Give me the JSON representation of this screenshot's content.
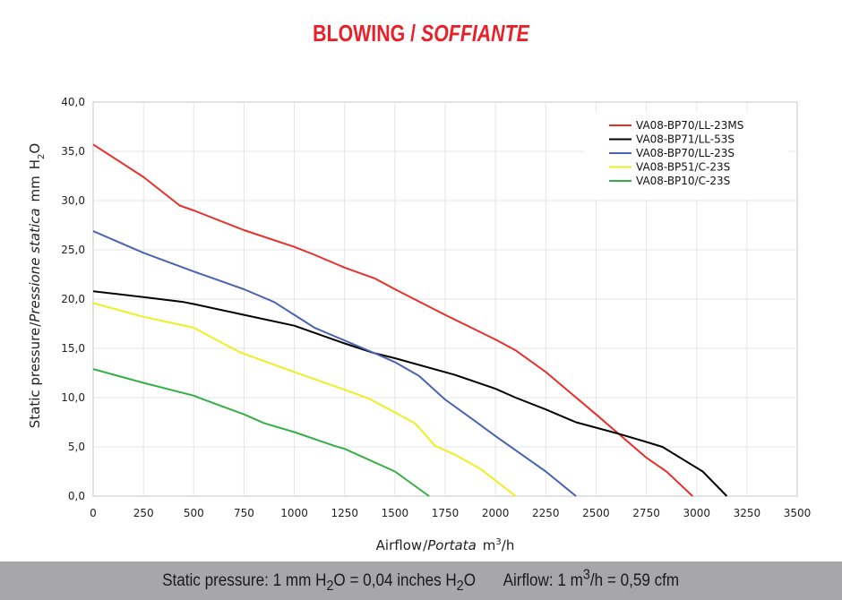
{
  "title": {
    "main": "BLOWING",
    "separator": "/",
    "italic": "SOFFIANTE",
    "color": "#e8202a"
  },
  "footer": {
    "pressure_prefix": "Static pressure: 1 mm H",
    "pressure_sub": "2",
    "pressure_mid": "O = 0,04 inches H",
    "pressure_sub2": "2",
    "pressure_suffix": "O",
    "airflow_prefix": "Airflow: 1 m",
    "airflow_sup": "3",
    "airflow_suffix": "/h = 0,59 cfm"
  },
  "chart_data": {
    "type": "line",
    "title": "BLOWING / SOFFIANTE",
    "xlabel": {
      "main": "Airflow",
      "separator": "/",
      "italic": "Portata",
      "unit": "m",
      "unit_sup": "3",
      "unit_suffix": "/h"
    },
    "ylabel": {
      "main": "Static pressure",
      "separator": "/",
      "italic": "Pressione statica",
      "unit": "mm",
      "unit_h": "H",
      "unit_sub": "2",
      "unit_o": "O"
    },
    "xlim": [
      0,
      3500
    ],
    "ylim": [
      0,
      40
    ],
    "x_ticks": [
      "0",
      "250",
      "500",
      "750",
      "1000",
      "1250",
      "1500",
      "1750",
      "2000",
      "2250",
      "2500",
      "2750",
      "3000",
      "3250",
      "3500"
    ],
    "y_ticks": [
      "0,0",
      "5,0",
      "10,0",
      "15,0",
      "20,0",
      "25,0",
      "30,0",
      "35,0",
      "40,0"
    ],
    "grid": true,
    "legend_position": "top-right",
    "series": [
      {
        "name": "VA08-BP70/LL-23MS",
        "color": "#e8302a",
        "points": [
          [
            0,
            35.7
          ],
          [
            250,
            32.4
          ],
          [
            430,
            29.5
          ],
          [
            500,
            29.0
          ],
          [
            750,
            27.0
          ],
          [
            1000,
            25.3
          ],
          [
            1100,
            24.5
          ],
          [
            1250,
            23.2
          ],
          [
            1400,
            22.1
          ],
          [
            1500,
            21.0
          ],
          [
            1750,
            18.4
          ],
          [
            1900,
            16.9
          ],
          [
            2000,
            15.9
          ],
          [
            2100,
            14.8
          ],
          [
            2250,
            12.6
          ],
          [
            2500,
            8.3
          ],
          [
            2750,
            3.9
          ],
          [
            2850,
            2.5
          ],
          [
            2980,
            0.0
          ]
        ]
      },
      {
        "name": "VA08-BP71/LL-53S",
        "color": "#000000",
        "points": [
          [
            0,
            20.8
          ],
          [
            250,
            20.2
          ],
          [
            450,
            19.7
          ],
          [
            500,
            19.5
          ],
          [
            750,
            18.4
          ],
          [
            1000,
            17.3
          ],
          [
            1250,
            15.5
          ],
          [
            1400,
            14.5
          ],
          [
            1500,
            14.0
          ],
          [
            1800,
            12.3
          ],
          [
            2000,
            10.9
          ],
          [
            2100,
            10.0
          ],
          [
            2250,
            8.8
          ],
          [
            2400,
            7.5
          ],
          [
            2600,
            6.4
          ],
          [
            2750,
            5.5
          ],
          [
            2830,
            5.0
          ],
          [
            3030,
            2.5
          ],
          [
            3150,
            0.0
          ]
        ]
      },
      {
        "name": "VA08-BP70/LL-23S",
        "color": "#4a63b3",
        "points": [
          [
            0,
            26.9
          ],
          [
            250,
            24.7
          ],
          [
            500,
            22.8
          ],
          [
            750,
            21.0
          ],
          [
            900,
            19.7
          ],
          [
            1000,
            18.4
          ],
          [
            1100,
            17.1
          ],
          [
            1250,
            15.8
          ],
          [
            1400,
            14.5
          ],
          [
            1500,
            13.6
          ],
          [
            1620,
            12.2
          ],
          [
            1750,
            9.8
          ],
          [
            1900,
            7.6
          ],
          [
            2000,
            6.1
          ],
          [
            2250,
            2.5
          ],
          [
            2400,
            0.0
          ]
        ]
      },
      {
        "name": "VA08-BP51/C-23S",
        "color": "#eeee22",
        "points": [
          [
            0,
            19.6
          ],
          [
            250,
            18.2
          ],
          [
            500,
            17.1
          ],
          [
            600,
            16.0
          ],
          [
            730,
            14.6
          ],
          [
            1000,
            12.6
          ],
          [
            1250,
            10.8
          ],
          [
            1370,
            9.9
          ],
          [
            1500,
            8.5
          ],
          [
            1600,
            7.4
          ],
          [
            1700,
            5.1
          ],
          [
            1800,
            4.2
          ],
          [
            1930,
            2.7
          ],
          [
            2100,
            0.0
          ]
        ]
      },
      {
        "name": "VA08-BP10/C-23S",
        "color": "#33b044",
        "points": [
          [
            0,
            12.9
          ],
          [
            250,
            11.5
          ],
          [
            500,
            10.2
          ],
          [
            550,
            9.8
          ],
          [
            750,
            8.3
          ],
          [
            850,
            7.4
          ],
          [
            1000,
            6.5
          ],
          [
            1200,
            5.1
          ],
          [
            1250,
            4.8
          ],
          [
            1500,
            2.5
          ],
          [
            1670,
            0.0
          ]
        ]
      }
    ]
  }
}
